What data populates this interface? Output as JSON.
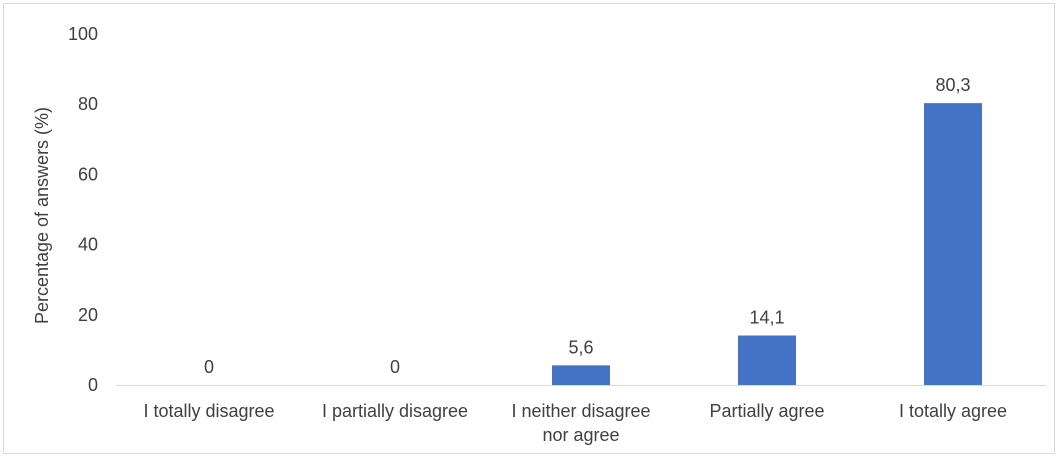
{
  "chart_data": {
    "type": "bar",
    "ylabel": "Percentage of answers (%)",
    "xlabel": "",
    "title": "",
    "categories": [
      [
        "I totally disagree"
      ],
      [
        "I partially disagree"
      ],
      [
        "I neither disagree",
        "nor agree"
      ],
      [
        "Partially agree"
      ],
      [
        "I totally agree"
      ]
    ],
    "values": [
      0,
      0,
      5.6,
      14.1,
      80.3
    ],
    "value_labels": [
      "0",
      "0",
      "5,6",
      "14,1",
      "80,3"
    ],
    "ylim": [
      0,
      100
    ],
    "yticks": [
      0,
      20,
      40,
      60,
      80,
      100
    ],
    "grid": false,
    "legend": "none",
    "bar_color": "#4472c4",
    "axis_color": "#d9d9d9",
    "text_color": "#404040"
  }
}
